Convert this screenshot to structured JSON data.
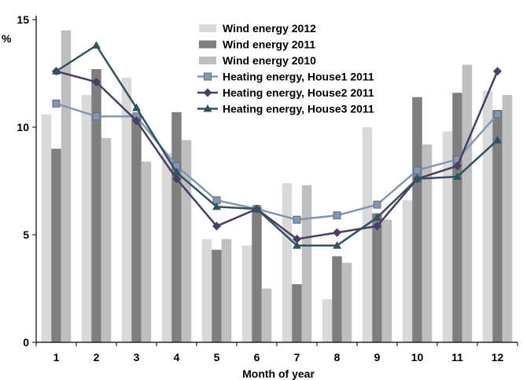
{
  "chart_data": {
    "type": "bar",
    "ylabel": "%",
    "xlabel": "Month of year",
    "ylim": [
      0,
      15
    ],
    "yticks": [
      0,
      5,
      10,
      15
    ],
    "categories": [
      "1",
      "2",
      "3",
      "4",
      "5",
      "6",
      "7",
      "8",
      "9",
      "10",
      "11",
      "12"
    ],
    "grid": false,
    "legend_position": "top-center",
    "bar_series": [
      {
        "name": "Wind energy 2012",
        "color": "#d9d9d9",
        "values": [
          10.6,
          11.5,
          12.3,
          8.8,
          4.8,
          4.5,
          7.4,
          2.0,
          10.0,
          6.6,
          9.8,
          11.7
        ]
      },
      {
        "name": "Wind energy 2011",
        "color": "#7f7f7f",
        "values": [
          9.0,
          12.7,
          10.6,
          10.7,
          4.3,
          6.3,
          2.7,
          4.0,
          6.0,
          11.4,
          11.6,
          10.8
        ]
      },
      {
        "name": "Wind energy 2010",
        "color": "#bfbfbf",
        "values": [
          14.5,
          9.5,
          8.4,
          9.4,
          4.8,
          2.5,
          7.3,
          3.7,
          5.7,
          9.2,
          12.9,
          11.5
        ]
      }
    ],
    "line_series": [
      {
        "name": "Heating energy, House1 2011",
        "color": "#8497b0",
        "marker": "square",
        "values": [
          11.1,
          10.5,
          10.5,
          8.2,
          6.6,
          6.2,
          5.7,
          5.9,
          6.4,
          8.0,
          8.5,
          10.6
        ]
      },
      {
        "name": "Heating energy, House2 2011",
        "color": "#4b3d63",
        "marker": "diamond",
        "values": [
          12.6,
          12.1,
          10.3,
          7.6,
          5.4,
          6.2,
          4.8,
          5.1,
          5.4,
          7.6,
          8.2,
          12.6
        ]
      },
      {
        "name": "Heating energy, House3 2011",
        "color": "#32525e",
        "marker": "triangle",
        "values": [
          12.6,
          13.8,
          10.9,
          7.9,
          6.3,
          6.2,
          4.5,
          4.5,
          5.8,
          7.6,
          7.7,
          9.4
        ]
      }
    ]
  }
}
